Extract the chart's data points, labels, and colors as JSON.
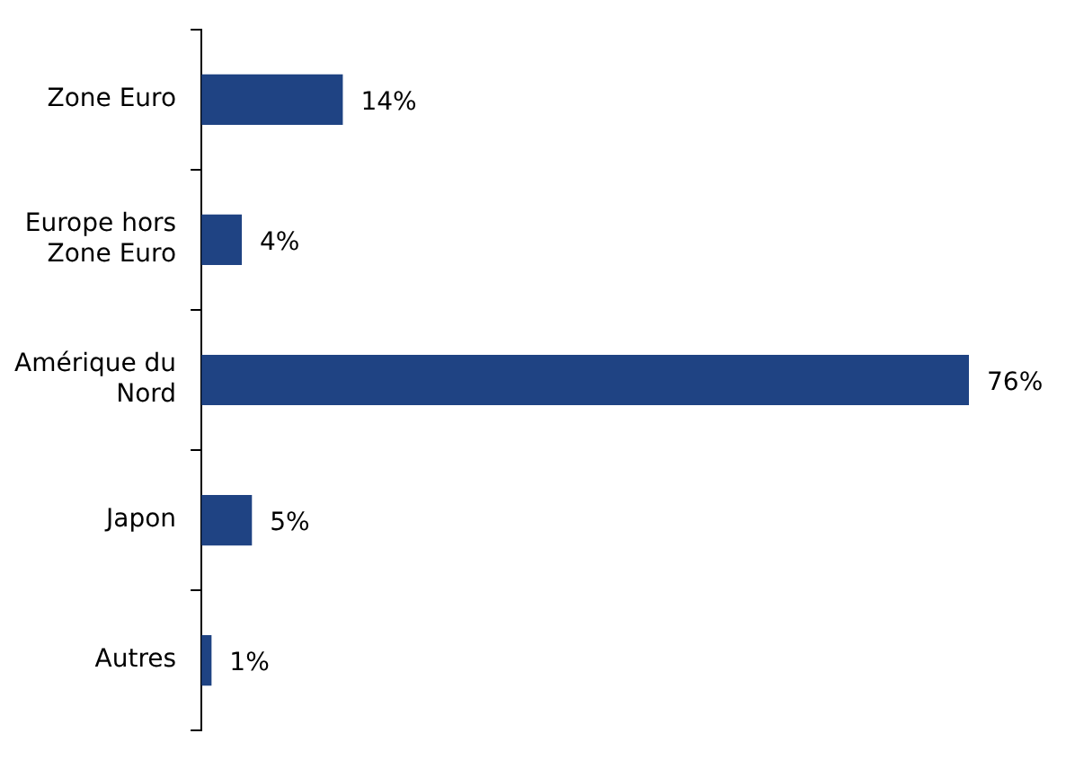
{
  "chart_data": {
    "type": "bar",
    "orientation": "horizontal",
    "categories": [
      "Zone Euro",
      "Europe hors Zone Euro",
      "Amérique du Nord",
      "Japon",
      "Autres"
    ],
    "values": [
      14,
      4,
      76,
      5,
      1
    ],
    "value_labels": [
      "14%",
      "4%",
      "76%",
      "5%",
      "1%"
    ],
    "color": "#1f4383",
    "grid": false,
    "legend": false
  }
}
